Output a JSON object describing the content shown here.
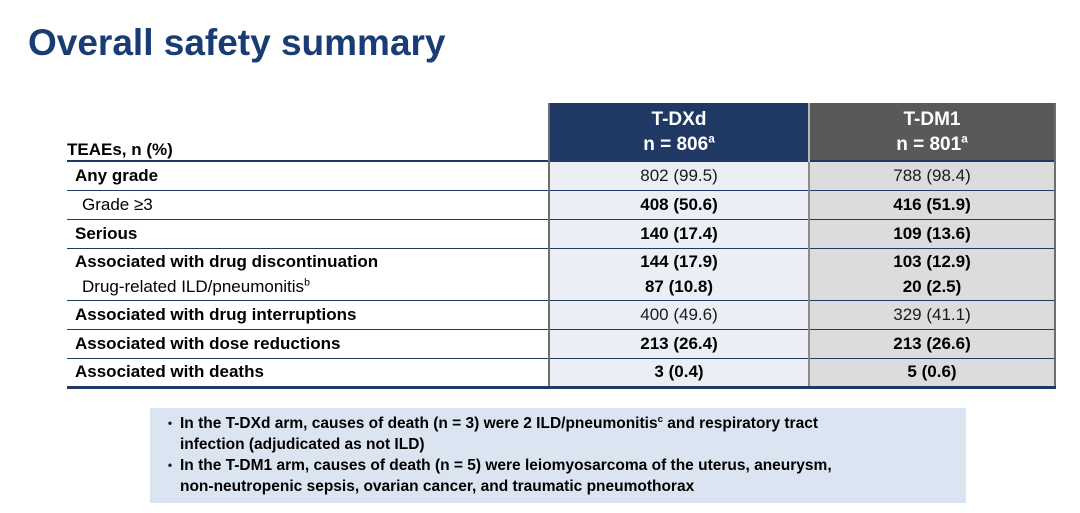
{
  "title": "Overall safety summary",
  "table": {
    "row_header_label": "TEAEs, n (%)",
    "columns": [
      {
        "drug": "T-DXd",
        "n_label": "n = 806",
        "n_sup": "a"
      },
      {
        "drug": "T-DM1",
        "n_label": "n = 801",
        "n_sup": "a"
      }
    ],
    "rows": [
      {
        "label": "Any grade",
        "tdxd": "802 (99.5)",
        "tdm1": "788 (98.4)"
      },
      {
        "label": "Grade ≥3",
        "tdxd": "408 (50.6)",
        "tdm1": "416 (51.9)"
      },
      {
        "label": "Serious",
        "tdxd": "140 (17.4)",
        "tdm1": "109 (13.6)"
      },
      {
        "label": "Associated with drug discontinuation",
        "sub_label": "Drug-related ILD/pneumonitis",
        "sub_label_sup": "b",
        "tdxd": "144 (17.9)",
        "tdxd_sub": "87 (10.8)",
        "tdm1": "103 (12.9)",
        "tdm1_sub": "20 (2.5)"
      },
      {
        "label": "Associated with drug interruptions",
        "tdxd": "400 (49.6)",
        "tdm1": "329 (41.1)"
      },
      {
        "label": "Associated with dose reductions",
        "tdxd": "213 (26.4)",
        "tdm1": "213 (26.6)"
      },
      {
        "label": "Associated with deaths",
        "tdxd": "3 (0.4)",
        "tdm1": "5 (0.6)"
      }
    ]
  },
  "notes": {
    "bullet_icon": "•",
    "bullets": [
      {
        "pre": "In the T-DXd arm, causes of death (n = 3) were 2 ILD/pneumonitis",
        "sup": "c",
        "post": " and respiratory tract\ninfection (adjudicated as not ILD)"
      },
      {
        "pre": "In the T-DM1 arm, causes of death (n = 5) were leiomyosarcoma of the uterus, aneurysm,\nnon-neutropenic sepsis, ovarian cancer, and traumatic pneumothorax",
        "sup": "",
        "post": ""
      }
    ]
  },
  "colors": {
    "title_color": "#193C74",
    "header_navy_bg": "#1F3864",
    "header_gray_bg": "#595959",
    "header_text": "#FFFFFF",
    "tdxd_col_bg": "#ECEEF6",
    "tdm1_col_bg": "#DCDCDC",
    "row_border": "#1F3864",
    "col_border": "#6E6E6E",
    "notes_bg": "#DBE5F1",
    "body_text": "#000000"
  }
}
